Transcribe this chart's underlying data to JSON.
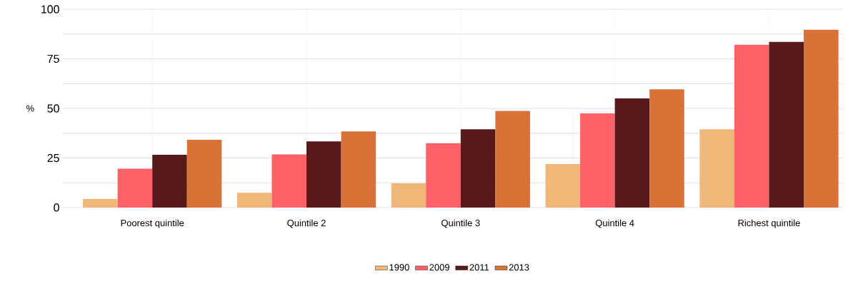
{
  "chart_data": {
    "type": "bar",
    "ylabel": "%",
    "categories": [
      "Poorest quintile",
      "Quintile 2",
      "Quintile 3",
      "Quintile 4",
      "Richest quintile"
    ],
    "series": [
      {
        "name": "1990",
        "color": "#f0b878",
        "values": [
          4.3,
          7.5,
          12.2,
          21.9,
          39.5
        ]
      },
      {
        "name": "2009",
        "color": "#fe6067",
        "values": [
          19.6,
          26.8,
          32.5,
          47.5,
          82.1
        ]
      },
      {
        "name": "2011",
        "color": "#58191a",
        "values": [
          26.6,
          33.4,
          39.5,
          55,
          83.5
        ]
      },
      {
        "name": "2013",
        "color": "#d87236",
        "values": [
          34.2,
          38.4,
          48.7,
          59.6,
          89.7
        ]
      }
    ],
    "ylim": [
      0,
      100
    ],
    "yticks": [
      0,
      {
        "value": 12.5,
        "label": null
      },
      25,
      {
        "value": 37.5,
        "label": null
      },
      50,
      {
        "value": 62.5,
        "label": null
      },
      75,
      {
        "value": 87.5,
        "label": null
      },
      100
    ],
    "grid": true,
    "legend": "bottom"
  }
}
